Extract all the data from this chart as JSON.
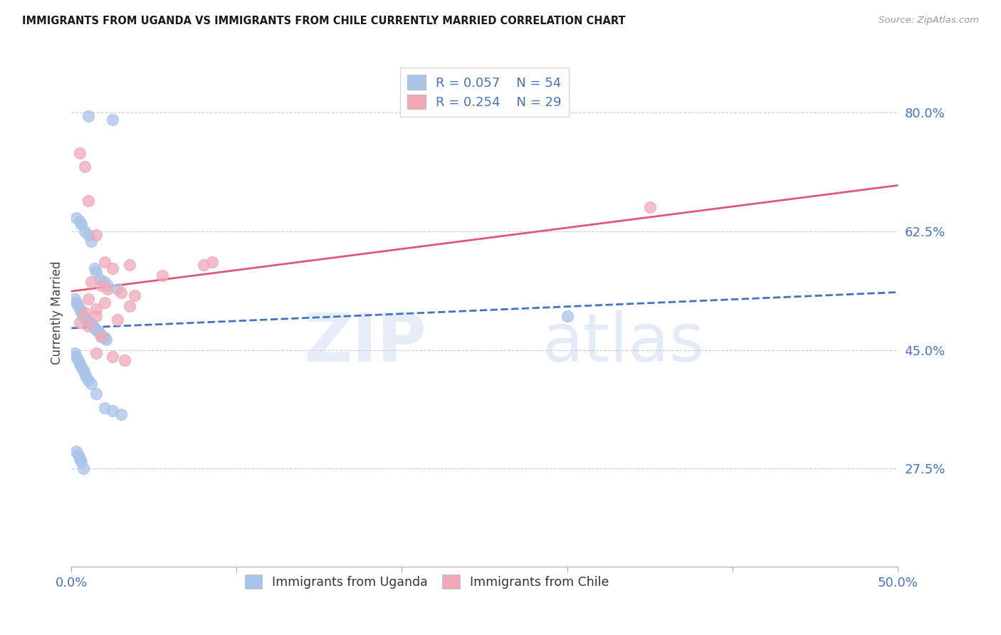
{
  "title": "IMMIGRANTS FROM UGANDA VS IMMIGRANTS FROM CHILE CURRENTLY MARRIED CORRELATION CHART",
  "source": "Source: ZipAtlas.com",
  "ylabel": "Currently Married",
  "xlim": [
    0.0,
    50.0
  ],
  "ylim": [
    13.0,
    88.0
  ],
  "yticks": [
    27.5,
    45.0,
    62.5,
    80.0
  ],
  "ytick_labels": [
    "27.5%",
    "45.0%",
    "62.5%",
    "80.0%"
  ],
  "legend1_r": "R = 0.057",
  "legend1_n": "N = 54",
  "legend2_r": "R = 0.254",
  "legend2_n": "N = 29",
  "uganda_color": "#a8c4e8",
  "chile_color": "#f0a8b8",
  "trend_uganda_color": "#4472c4",
  "trend_chile_color": "#e05878",
  "uganda_label": "Immigrants from Uganda",
  "chile_label": "Immigrants from Chile",
  "watermark_zip": "ZIP",
  "watermark_atlas": "atlas",
  "uganda_x": [
    1.0,
    2.5,
    0.3,
    0.5,
    0.6,
    0.8,
    1.0,
    1.2,
    1.4,
    1.5,
    1.7,
    2.0,
    2.2,
    2.8,
    0.2,
    0.3,
    0.4,
    0.5,
    0.6,
    0.7,
    0.8,
    0.9,
    1.0,
    1.1,
    1.2,
    1.3,
    1.4,
    1.5,
    1.6,
    1.7,
    1.8,
    1.9,
    2.0,
    2.1,
    0.2,
    0.3,
    0.4,
    0.5,
    0.6,
    0.7,
    0.8,
    0.9,
    1.0,
    1.2,
    1.5,
    2.0,
    2.5,
    3.0,
    0.3,
    0.4,
    0.5,
    0.6,
    30.0,
    0.7
  ],
  "uganda_y": [
    79.5,
    79.0,
    64.5,
    64.0,
    63.5,
    62.5,
    62.0,
    61.0,
    57.0,
    56.5,
    55.5,
    55.0,
    54.5,
    54.0,
    52.5,
    52.0,
    51.5,
    51.0,
    50.5,
    50.0,
    49.8,
    49.5,
    49.2,
    49.0,
    48.8,
    48.5,
    48.2,
    48.0,
    47.8,
    47.5,
    47.2,
    47.0,
    46.8,
    46.5,
    44.5,
    44.0,
    43.5,
    43.0,
    42.5,
    42.0,
    41.5,
    41.0,
    40.5,
    40.0,
    38.5,
    36.5,
    36.0,
    35.5,
    30.0,
    29.5,
    29.0,
    28.5,
    50.0,
    27.5
  ],
  "chile_x": [
    0.5,
    0.8,
    1.0,
    1.5,
    2.0,
    2.5,
    3.5,
    5.5,
    1.2,
    1.8,
    2.2,
    3.0,
    3.8,
    1.0,
    2.0,
    3.5,
    1.5,
    0.8,
    1.5,
    2.8,
    0.5,
    1.0,
    35.0,
    8.0,
    8.5,
    1.8,
    1.5,
    2.5,
    3.2
  ],
  "chile_y": [
    74.0,
    72.0,
    67.0,
    62.0,
    58.0,
    57.0,
    57.5,
    56.0,
    55.0,
    54.5,
    54.0,
    53.5,
    53.0,
    52.5,
    52.0,
    51.5,
    51.0,
    50.5,
    50.0,
    49.5,
    49.0,
    48.5,
    66.0,
    57.5,
    58.0,
    47.0,
    44.5,
    44.0,
    43.5
  ]
}
